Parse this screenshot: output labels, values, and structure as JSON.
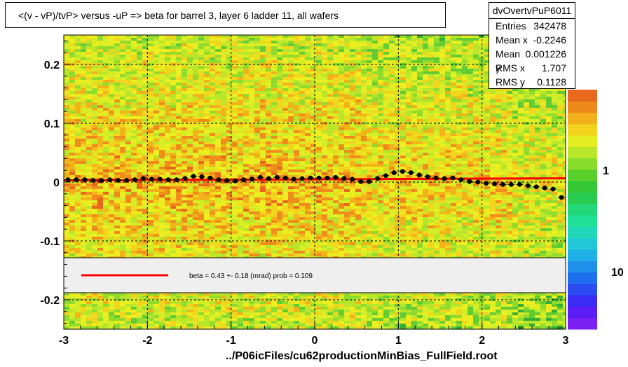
{
  "title": "<(v - vP)/tvP> versus  -uP => beta for barrel 3, layer 6 ladder 11, all wafers",
  "stats": {
    "name": "dvOvertvPuP6011",
    "rows": [
      {
        "label": "Entries",
        "value": "342478"
      },
      {
        "label": "Mean x",
        "value": "-0.2246"
      },
      {
        "label": "Mean y",
        "value": "0.001226"
      },
      {
        "label": "RMS x",
        "value": "1.707"
      },
      {
        "label": "RMS y",
        "value": "0.1128"
      }
    ]
  },
  "fit_text": "beta =    0.43 +-  0.18 (mrad) prob = 0.109",
  "footer": "../P06icFiles/cu62productionMinBias_FullField.root",
  "colors": {
    "fit_line": "#ff0000",
    "profile_points": "#000000",
    "legend_bg": "#efefef"
  },
  "chart_data": {
    "type": "heatmap",
    "title": "<(v - vP)/tvP> versus  -uP => beta for barrel 3, layer 6 ladder 11, all wafers",
    "xlim": [
      -3,
      3
    ],
    "ylim": [
      -0.25,
      0.25
    ],
    "x_ticks": [
      "-3",
      "-2",
      "-1",
      "0",
      "1",
      "2",
      "3"
    ],
    "x_tick_values": [
      -3,
      -2,
      -1,
      0,
      1,
      2,
      3
    ],
    "y_ticks": [
      "-0.2",
      "-0.1",
      "0",
      "0.1",
      "0.2"
    ],
    "y_tick_values": [
      -0.2,
      -0.1,
      0,
      0.1,
      0.2
    ],
    "grid": true,
    "z_scale": "log",
    "z_axis_labels": [
      "1",
      "10"
    ],
    "profile": {
      "x": [
        -2.95,
        -2.85,
        -2.75,
        -2.65,
        -2.55,
        -2.45,
        -2.35,
        -2.25,
        -2.15,
        -2.05,
        -1.95,
        -1.85,
        -1.75,
        -1.65,
        -1.55,
        -1.45,
        -1.35,
        -1.25,
        -1.15,
        -1.05,
        -0.95,
        -0.85,
        -0.75,
        -0.65,
        -0.55,
        -0.45,
        -0.35,
        -0.25,
        -0.15,
        -0.05,
        0.05,
        0.15,
        0.25,
        0.35,
        0.45,
        0.55,
        0.65,
        0.75,
        0.85,
        0.95,
        1.05,
        1.15,
        1.25,
        1.35,
        1.45,
        1.55,
        1.65,
        1.75,
        1.85,
        1.95,
        2.05,
        2.15,
        2.25,
        2.35,
        2.45,
        2.55,
        2.65,
        2.75,
        2.85,
        2.95
      ],
      "y": [
        0.004,
        0.004,
        0.004,
        0.003,
        0.003,
        0.004,
        0.003,
        0.003,
        0.004,
        0.006,
        0.005,
        0.005,
        0.004,
        0.004,
        0.006,
        0.01,
        0.009,
        0.007,
        0.004,
        0.003,
        0.002,
        0.004,
        0.005,
        0.008,
        0.006,
        0.008,
        0.007,
        0.005,
        0.006,
        0.007,
        0.007,
        0.007,
        0.008,
        0.006,
        0.005,
        0.001,
        0.001,
        0.006,
        0.011,
        0.016,
        0.018,
        0.016,
        0.012,
        0.009,
        0.007,
        0.006,
        0.007,
        0.004,
        0.001,
        0.0,
        -0.002,
        -0.003,
        -0.004,
        -0.004,
        -0.004,
        -0.006,
        -0.008,
        -0.01,
        -0.012,
        -0.026
      ]
    },
    "fit_line": {
      "label": "beta =    0.43 +-  0.18 (mrad) prob = 0.109",
      "x": [
        -3,
        3
      ],
      "y": [
        0.003,
        0.0064
      ]
    }
  }
}
